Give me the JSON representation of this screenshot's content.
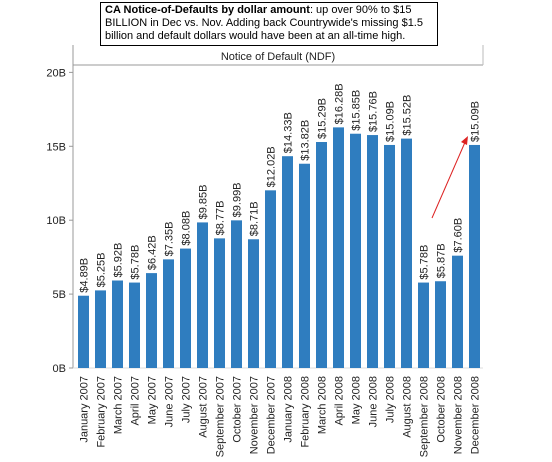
{
  "chart_data": {
    "type": "bar",
    "title": "CA Notice-of-Defaults by dollar amount",
    "title_note": ": up over 90% to $15 BILLION in Dec vs. Nov. Adding back Countrywide's missing $1.5 billion and default dollars would have been at an all-time high.",
    "panel_title": "Notice of Default (NDF)",
    "categories": [
      "January 2007",
      "February 2007",
      "March 2007",
      "April 2007",
      "May 2007",
      "June 2007",
      "July 2007",
      "August 2007",
      "September 2007",
      "October 2007",
      "November 2007",
      "December 2007",
      "January 2008",
      "February 2008",
      "March 2008",
      "April 2008",
      "May 2008",
      "June 2008",
      "July 2008",
      "August 2008",
      "September 2008",
      "October 2008",
      "November 2008",
      "December 2008"
    ],
    "values": [
      4.89,
      5.25,
      5.92,
      5.78,
      6.42,
      7.35,
      8.08,
      9.85,
      8.77,
      9.99,
      8.71,
      12.02,
      14.33,
      13.82,
      15.29,
      16.28,
      15.85,
      15.76,
      15.09,
      15.52,
      5.78,
      5.87,
      7.6,
      15.09
    ],
    "value_labels": [
      "$4.89B",
      "$5.25B",
      "$5.92B",
      "$5.78B",
      "$6.42B",
      "$7.35B",
      "$8.08B",
      "$9.85B",
      "$8.77B",
      "$9.99B",
      "$8.71B",
      "$12.02B",
      "$14.33B",
      "$13.82B",
      "$15.29B",
      "$16.28B",
      "$15.85B",
      "$15.76B",
      "$15.09B",
      "$15.52B",
      "$5.78B",
      "$5.87B",
      "$7.60B",
      "$15.09B"
    ],
    "color": "#2f7dbf",
    "ylim": [
      0,
      20.5
    ],
    "yticks": [
      {
        "value": 0,
        "label": "0B"
      },
      {
        "value": 5,
        "label": "5B"
      },
      {
        "value": 10,
        "label": "10B"
      },
      {
        "value": 15,
        "label": "15B"
      },
      {
        "value": 20,
        "label": "20B"
      }
    ]
  }
}
